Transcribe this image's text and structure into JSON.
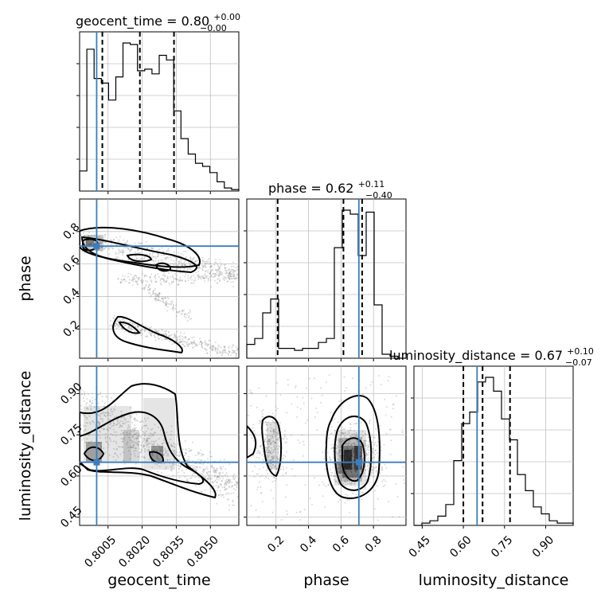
{
  "chart_data": {
    "type": "corner",
    "params": [
      "geocent_time",
      "phase",
      "luminosity_distance"
    ],
    "truth": {
      "geocent_time": 0.8,
      "phase": 0.71,
      "luminosity_distance": 0.65
    },
    "colors": {
      "truth": "#3b7dbf",
      "hist": "#000000",
      "grid": "#c0c0c0"
    },
    "titles": [
      {
        "param": "geocent_time",
        "base": "geocent_time = 0.80",
        "up": "+0.00",
        "down": "−0.00"
      },
      {
        "param": "phase",
        "base": "phase = 0.62",
        "up": "+0.11",
        "down": "−0.40"
      },
      {
        "param": "luminosity_distance",
        "base": "luminosity_distance = 0.67",
        "up": "+0.10",
        "down": "−0.07"
      }
    ],
    "axis_labels": {
      "x": [
        "geocent_time",
        "phase",
        "luminosity_distance"
      ],
      "y": [
        "phase",
        "luminosity_distance"
      ]
    },
    "axes": {
      "geocent_time": {
        "range": [
          0.79925,
          0.80625
        ],
        "ticks": [
          0.8005,
          0.802,
          0.8035,
          0.805
        ],
        "tick_labels": [
          "0.8005",
          "0.8020",
          "0.8035",
          "0.8050"
        ]
      },
      "phase": {
        "range": [
          0.02,
          1.0
        ],
        "ticks": [
          0.2,
          0.4,
          0.6,
          0.8
        ],
        "tick_labels": [
          "0.2",
          "0.4",
          "0.6",
          "0.8"
        ]
      },
      "luminosity_distance": {
        "range": [
          0.42,
          1.0
        ],
        "ticks": [
          0.45,
          0.6,
          0.75,
          0.9
        ],
        "tick_labels": [
          "0.45",
          "0.60",
          "0.75",
          "0.90"
        ]
      }
    },
    "histograms": {
      "geocent_time": {
        "values": [
          0.13,
          0.92,
          0.73,
          0.7,
          0.59,
          0.74,
          0.96,
          0.95,
          0.78,
          0.79,
          0.76,
          0.88,
          0.85,
          0.52,
          0.34,
          0.24,
          0.18,
          0.16,
          0.12,
          0.06,
          0.02,
          0.01
        ],
        "quantiles": [
          0.80025,
          0.8019,
          0.8034
        ]
      },
      "phase": {
        "values": [
          0.07,
          0.1,
          0.23,
          0.3,
          0.05,
          0.05,
          0.04,
          0.05,
          0.05,
          0.08,
          0.1,
          0.56,
          0.75,
          0.73,
          0.52,
          0.74,
          0.27,
          0.02,
          0.01,
          0.0
        ],
        "quantiles": [
          0.21,
          0.615,
          0.73
        ]
      },
      "luminosity_distance": {
        "values": [
          0.0,
          0.01,
          0.02,
          0.04,
          0.09,
          0.28,
          0.44,
          0.49,
          0.62,
          0.64,
          0.58,
          0.46,
          0.37,
          0.22,
          0.15,
          0.08,
          0.05,
          0.02,
          0.01,
          0.01
        ],
        "quantiles": [
          0.6,
          0.67,
          0.77
        ]
      }
    }
  }
}
